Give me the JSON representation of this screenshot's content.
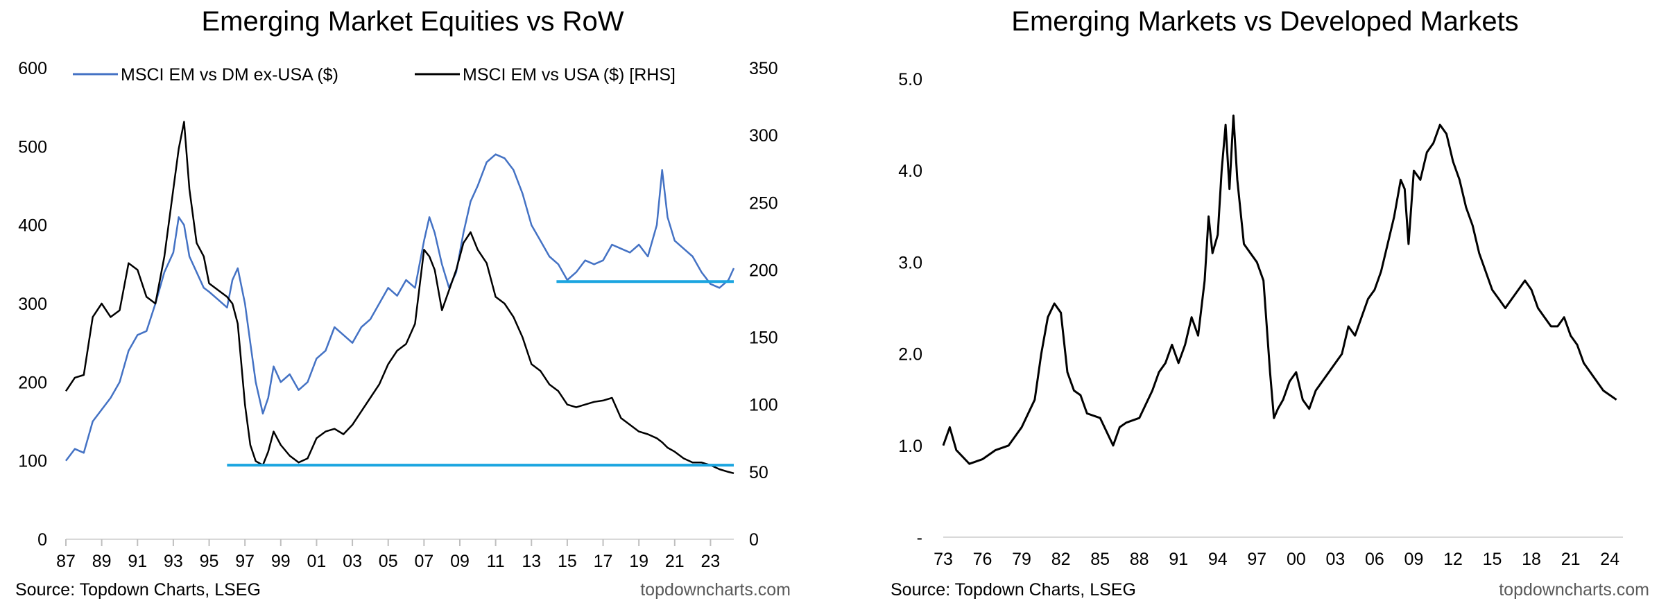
{
  "chart_data": [
    {
      "type": "line",
      "title": "Emerging Market Equities vs RoW",
      "source": "Source: Topdown Charts, LSEG",
      "brand": "topdowncharts.com",
      "xlabel": "",
      "ylabel": "",
      "x_ticks": [
        "87",
        "89",
        "91",
        "93",
        "95",
        "97",
        "99",
        "01",
        "03",
        "05",
        "07",
        "09",
        "11",
        "13",
        "15",
        "17",
        "19",
        "21",
        "23"
      ],
      "x_range": [
        1987.0,
        2024.3
      ],
      "y_left": {
        "range": [
          0,
          600
        ],
        "ticks": [
          0,
          100,
          200,
          300,
          400,
          500,
          600
        ]
      },
      "y_right": {
        "range": [
          0,
          350
        ],
        "ticks": [
          0,
          50,
          100,
          150,
          200,
          250,
          300,
          350
        ]
      },
      "legend": "top",
      "grid": false,
      "series": [
        {
          "name": "MSCI EM vs DM ex-USA ($)",
          "axis": "left",
          "color": "#4472C4",
          "x": [
            1987.0,
            1987.5,
            1988.0,
            1988.5,
            1989.0,
            1989.5,
            1990.0,
            1990.5,
            1991.0,
            1991.5,
            1992.0,
            1992.5,
            1993.0,
            1993.3,
            1993.6,
            1993.9,
            1994.3,
            1994.7,
            1995.0,
            1995.5,
            1996.0,
            1996.3,
            1996.6,
            1997.0,
            1997.3,
            1997.6,
            1998.0,
            1998.3,
            1998.6,
            1999.0,
            1999.5,
            2000.0,
            2000.5,
            2001.0,
            2001.5,
            2002.0,
            2002.5,
            2003.0,
            2003.5,
            2004.0,
            2004.5,
            2005.0,
            2005.5,
            2006.0,
            2006.5,
            2007.0,
            2007.3,
            2007.6,
            2008.0,
            2008.4,
            2008.8,
            2009.2,
            2009.6,
            2010.0,
            2010.5,
            2011.0,
            2011.5,
            2012.0,
            2012.5,
            2013.0,
            2013.5,
            2014.0,
            2014.5,
            2015.0,
            2015.5,
            2016.0,
            2016.5,
            2017.0,
            2017.5,
            2018.0,
            2018.5,
            2019.0,
            2019.5,
            2020.0,
            2020.3,
            2020.6,
            2021.0,
            2021.5,
            2022.0,
            2022.5,
            2023.0,
            2023.5,
            2024.0,
            2024.3
          ],
          "y": [
            100,
            115,
            110,
            150,
            165,
            180,
            200,
            240,
            260,
            265,
            300,
            340,
            365,
            410,
            400,
            360,
            340,
            320,
            315,
            305,
            295,
            330,
            345,
            300,
            250,
            200,
            160,
            180,
            220,
            200,
            210,
            190,
            200,
            230,
            240,
            270,
            260,
            250,
            270,
            280,
            300,
            320,
            310,
            330,
            320,
            380,
            410,
            390,
            350,
            320,
            340,
            390,
            430,
            450,
            480,
            490,
            485,
            470,
            440,
            400,
            380,
            360,
            350,
            330,
            340,
            355,
            350,
            355,
            375,
            370,
            365,
            375,
            360,
            400,
            470,
            410,
            380,
            370,
            360,
            340,
            325,
            320,
            330,
            345
          ]
        },
        {
          "name": "MSCI EM vs USA ($) [RHS]",
          "axis": "right",
          "color": "#000000",
          "x": [
            1987.0,
            1987.5,
            1988.0,
            1988.5,
            1989.0,
            1989.5,
            1990.0,
            1990.5,
            1991.0,
            1991.5,
            1992.0,
            1992.5,
            1993.0,
            1993.3,
            1993.6,
            1993.9,
            1994.3,
            1994.7,
            1995.0,
            1995.5,
            1996.0,
            1996.3,
            1996.6,
            1997.0,
            1997.3,
            1997.6,
            1998.0,
            1998.3,
            1998.6,
            1999.0,
            1999.5,
            2000.0,
            2000.5,
            2001.0,
            2001.5,
            2002.0,
            2002.5,
            2003.0,
            2003.5,
            2004.0,
            2004.5,
            2005.0,
            2005.5,
            2006.0,
            2006.5,
            2007.0,
            2007.3,
            2007.6,
            2008.0,
            2008.4,
            2008.8,
            2009.2,
            2009.6,
            2010.0,
            2010.5,
            2011.0,
            2011.5,
            2012.0,
            2012.5,
            2013.0,
            2013.5,
            2014.0,
            2014.5,
            2015.0,
            2015.5,
            2016.0,
            2016.5,
            2017.0,
            2017.5,
            2018.0,
            2018.5,
            2019.0,
            2019.5,
            2020.0,
            2020.3,
            2020.6,
            2021.0,
            2021.5,
            2022.0,
            2022.5,
            2023.0,
            2023.5,
            2024.0,
            2024.3
          ],
          "y": [
            110,
            120,
            122,
            165,
            175,
            165,
            170,
            205,
            200,
            180,
            175,
            210,
            260,
            290,
            310,
            260,
            220,
            210,
            190,
            185,
            180,
            175,
            160,
            100,
            70,
            58,
            55,
            65,
            80,
            70,
            62,
            57,
            60,
            75,
            80,
            82,
            78,
            85,
            95,
            105,
            115,
            130,
            140,
            145,
            160,
            215,
            210,
            200,
            170,
            185,
            200,
            220,
            228,
            215,
            205,
            180,
            175,
            165,
            150,
            130,
            125,
            115,
            110,
            100,
            98,
            100,
            102,
            103,
            105,
            90,
            85,
            80,
            78,
            75,
            72,
            68,
            65,
            60,
            57,
            57,
            55,
            52,
            50,
            49
          ]
        }
      ],
      "reference_lines": [
        {
          "axis": "right",
          "value": 55,
          "x": [
            1996.0,
            2024.3
          ],
          "color": "#1BA5E0"
        },
        {
          "axis": "left",
          "value": 328,
          "x": [
            2014.4,
            2024.3
          ],
          "color": "#1BA5E0"
        }
      ]
    },
    {
      "type": "line",
      "title": "Emerging Markets vs Developed Markets",
      "source": "Source: Topdown Charts, LSEG",
      "brand": "topdowncharts.com",
      "xlabel": "",
      "ylabel": "",
      "x_ticks": [
        "73",
        "76",
        "79",
        "82",
        "85",
        "88",
        "91",
        "94",
        "97",
        "00",
        "03",
        "06",
        "09",
        "12",
        "15",
        "18",
        "21",
        "24"
      ],
      "x_range": [
        1973.0,
        2025.0
      ],
      "y_ticks": [
        "-",
        "1.0",
        "2.0",
        "3.0",
        "4.0",
        "5.0"
      ],
      "ylim": [
        0,
        5
      ],
      "legend": "none",
      "grid": false,
      "series": [
        {
          "color": "#000000",
          "x": [
            1973.0,
            1973.5,
            1974.0,
            1975.0,
            1976.0,
            1977.0,
            1978.0,
            1979.0,
            1979.5,
            1980.0,
            1980.5,
            1981.0,
            1981.5,
            1982.0,
            1982.5,
            1983.0,
            1983.5,
            1984.0,
            1985.0,
            1986.0,
            1986.5,
            1987.0,
            1988.0,
            1989.0,
            1989.5,
            1990.0,
            1990.5,
            1991.0,
            1991.5,
            1992.0,
            1992.5,
            1993.0,
            1993.3,
            1993.6,
            1994.0,
            1994.3,
            1994.6,
            1994.9,
            1995.2,
            1995.5,
            1996.0,
            1996.5,
            1997.0,
            1997.5,
            1998.0,
            1998.3,
            1998.6,
            1999.0,
            1999.5,
            2000.0,
            2000.5,
            2001.0,
            2001.5,
            2002.0,
            2002.5,
            2003.0,
            2003.5,
            2004.0,
            2004.5,
            2005.0,
            2005.5,
            2006.0,
            2006.5,
            2007.0,
            2007.5,
            2008.0,
            2008.3,
            2008.6,
            2009.0,
            2009.5,
            2010.0,
            2010.5,
            2011.0,
            2011.5,
            2012.0,
            2012.5,
            2013.0,
            2013.5,
            2014.0,
            2014.5,
            2015.0,
            2015.5,
            2016.0,
            2016.5,
            2017.0,
            2017.5,
            2018.0,
            2018.5,
            2019.0,
            2019.5,
            2020.0,
            2020.5,
            2021.0,
            2021.5,
            2022.0,
            2022.5,
            2023.0,
            2023.5,
            2024.0,
            2024.5
          ],
          "y": [
            1.0,
            1.2,
            0.95,
            0.8,
            0.85,
            0.95,
            1.0,
            1.2,
            1.35,
            1.5,
            2.0,
            2.4,
            2.55,
            2.45,
            1.8,
            1.6,
            1.55,
            1.35,
            1.3,
            1.0,
            1.2,
            1.25,
            1.3,
            1.6,
            1.8,
            1.9,
            2.1,
            1.9,
            2.1,
            2.4,
            2.2,
            2.8,
            3.5,
            3.1,
            3.3,
            4.0,
            4.5,
            3.8,
            4.6,
            3.9,
            3.2,
            3.1,
            3.0,
            2.8,
            1.8,
            1.3,
            1.4,
            1.5,
            1.7,
            1.8,
            1.5,
            1.4,
            1.6,
            1.7,
            1.8,
            1.9,
            2.0,
            2.3,
            2.2,
            2.4,
            2.6,
            2.7,
            2.9,
            3.2,
            3.5,
            3.9,
            3.8,
            3.2,
            4.0,
            3.9,
            4.2,
            4.3,
            4.5,
            4.4,
            4.1,
            3.9,
            3.6,
            3.4,
            3.1,
            2.9,
            2.7,
            2.6,
            2.5,
            2.6,
            2.7,
            2.8,
            2.7,
            2.5,
            2.4,
            2.3,
            2.3,
            2.4,
            2.2,
            2.1,
            1.9,
            1.8,
            1.7,
            1.6,
            1.55,
            1.5
          ]
        }
      ]
    }
  ]
}
